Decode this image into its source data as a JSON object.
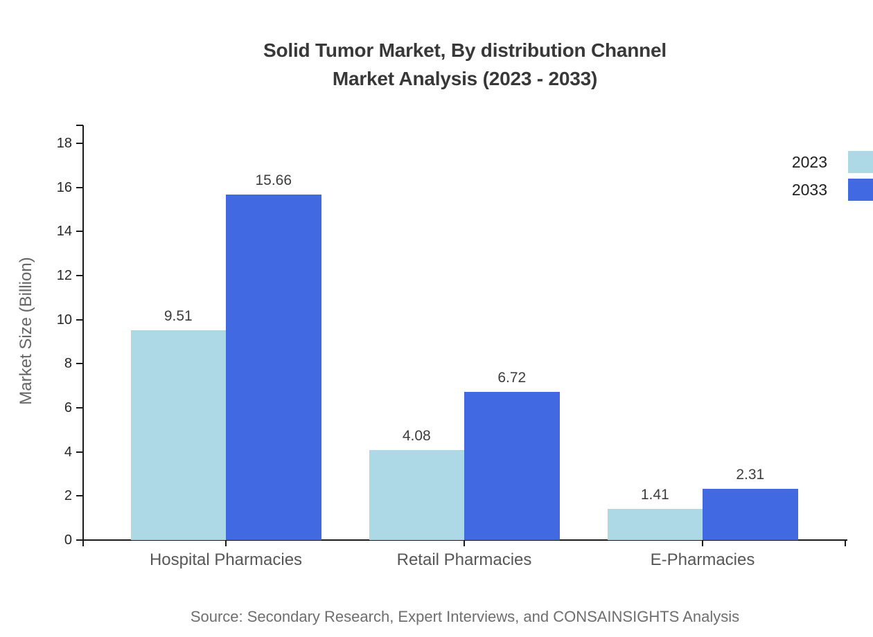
{
  "title": {
    "line1": "Solid Tumor Market, By distribution Channel",
    "line2": "Market Analysis (2023 - 2033)"
  },
  "ylabel": "Market Size (Billion)",
  "source": "Source: Secondary Research, Expert Interviews, and CONSAINSIGHTS Analysis",
  "colors": {
    "series_2023": "#add8e6",
    "series_2033": "#4169e1",
    "axis": "#1a1a1a"
  },
  "legend": [
    {
      "label": "2023",
      "color": "#add8e6"
    },
    {
      "label": "2033",
      "color": "#4169e1"
    }
  ],
  "chart_data": {
    "type": "bar",
    "title": "Solid Tumor Market, By distribution Channel Market Analysis (2023 - 2033)",
    "categories": [
      "Hospital Pharmacies",
      "Retail Pharmacies",
      "E-Pharmacies"
    ],
    "series": [
      {
        "name": "2023",
        "color": "#add8e6",
        "values": [
          9.51,
          4.08,
          1.41
        ]
      },
      {
        "name": "2033",
        "color": "#4169e1",
        "values": [
          15.66,
          6.72,
          2.31
        ]
      }
    ],
    "xlabel": "",
    "ylabel": "Market Size (Billion)",
    "ylim": [
      0,
      18
    ],
    "yticks": [
      0,
      2,
      4,
      6,
      8,
      10,
      12,
      14,
      16,
      18
    ],
    "grid": false,
    "legend_position": "top-right",
    "value_labels": true
  }
}
